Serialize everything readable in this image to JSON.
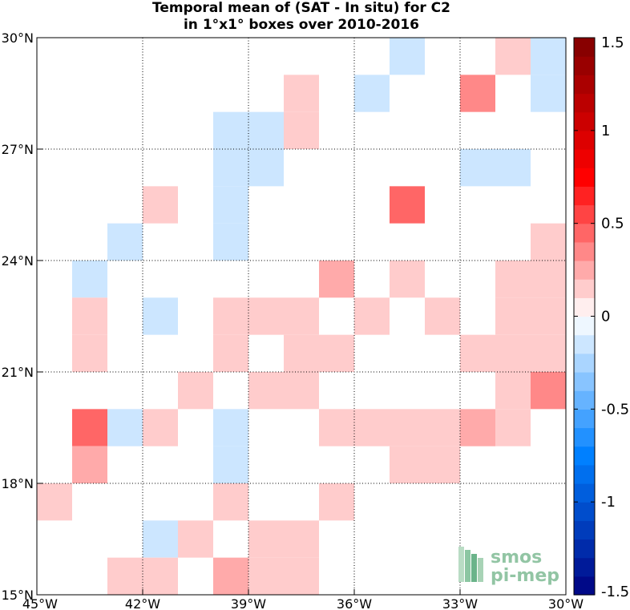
{
  "chart_data": {
    "type": "heatmap",
    "title_lines": [
      "Temporal mean of (SAT - In situ) for C2",
      "in 1°x1° boxes over 2010-2016"
    ],
    "x_ticks": [
      {
        "v": -45,
        "label": "45°W"
      },
      {
        "v": -42,
        "label": "42°W"
      },
      {
        "v": -39,
        "label": "39°W"
      },
      {
        "v": -36,
        "label": "36°W"
      },
      {
        "v": -33,
        "label": "33°W"
      },
      {
        "v": -30,
        "label": "30°W"
      }
    ],
    "y_ticks": [
      {
        "v": 15,
        "label": "15°N"
      },
      {
        "v": 18,
        "label": "18°N"
      },
      {
        "v": 21,
        "label": "21°N"
      },
      {
        "v": 24,
        "label": "24°N"
      },
      {
        "v": 27,
        "label": "27°N"
      },
      {
        "v": 30,
        "label": "30°N"
      }
    ],
    "xlim": [
      -45,
      -30
    ],
    "ylim": [
      15,
      30
    ],
    "grid": "dotted",
    "colorbar": {
      "range": [
        -1.5,
        1.5
      ],
      "ticks": [
        {
          "v": 1.5,
          "label": "1.5"
        },
        {
          "v": 1,
          "label": "1"
        },
        {
          "v": 0.5,
          "label": "0.5"
        },
        {
          "v": 0,
          "label": "0"
        },
        {
          "v": -0.5,
          "label": "-0.5"
        },
        {
          "v": -1,
          "label": "-1"
        },
        {
          "v": -1.5,
          "label": "-1.5"
        }
      ],
      "steps": 30,
      "colormap": "blue-white-red"
    },
    "cells": [
      [
        -35,
        29,
        -0.1
      ],
      [
        -32,
        29,
        0.1
      ],
      [
        -31,
        29,
        -0.1
      ],
      [
        -38,
        28,
        0.1
      ],
      [
        -36,
        28,
        -0.1
      ],
      [
        -33,
        28,
        0.3
      ],
      [
        -31,
        28,
        -0.1
      ],
      [
        -40,
        27,
        -0.2
      ],
      [
        -39,
        27,
        -0.1
      ],
      [
        -38,
        27,
        0.1
      ],
      [
        -40,
        26,
        -0.1
      ],
      [
        -39,
        26,
        -0.1
      ],
      [
        -33,
        26,
        -0.1
      ],
      [
        -32,
        26,
        -0.1
      ],
      [
        -42,
        25,
        0.1
      ],
      [
        -40,
        25,
        -0.2
      ],
      [
        -35,
        25,
        0.4
      ],
      [
        -43,
        24,
        -0.1
      ],
      [
        -40,
        24,
        -0.1
      ],
      [
        -31,
        24,
        0.1
      ],
      [
        -44,
        23,
        -0.1
      ],
      [
        -37,
        23,
        0.2
      ],
      [
        -35,
        23,
        0.1
      ],
      [
        -32,
        23,
        0.1
      ],
      [
        -31,
        23,
        0.1
      ],
      [
        -44,
        22,
        0.1
      ],
      [
        -42,
        22,
        -0.1
      ],
      [
        -40,
        22,
        0.1
      ],
      [
        -39,
        22,
        0.1
      ],
      [
        -38,
        22,
        0.1
      ],
      [
        -36,
        22,
        0.1
      ],
      [
        -34,
        22,
        0.1
      ],
      [
        -32,
        22,
        0.1
      ],
      [
        -31,
        22,
        0.1
      ],
      [
        -44,
        21,
        0.1
      ],
      [
        -40,
        21,
        0.1
      ],
      [
        -38,
        21,
        0.1
      ],
      [
        -37,
        21,
        0.1
      ],
      [
        -33,
        21,
        0.1
      ],
      [
        -32,
        21,
        0.1
      ],
      [
        -31,
        21,
        0.1
      ],
      [
        -41,
        20,
        0.1
      ],
      [
        -39,
        20,
        0.1
      ],
      [
        -38,
        20,
        0.1
      ],
      [
        -32,
        20,
        0.1
      ],
      [
        -31,
        20,
        0.3
      ],
      [
        -44,
        19,
        0.4
      ],
      [
        -43,
        19,
        -0.1
      ],
      [
        -42,
        19,
        0.1
      ],
      [
        -40,
        19,
        -0.1
      ],
      [
        -37,
        19,
        0.1
      ],
      [
        -36,
        19,
        0.1
      ],
      [
        -35,
        19,
        0.1
      ],
      [
        -34,
        19,
        0.1
      ],
      [
        -33,
        19,
        0.2
      ],
      [
        -32,
        19,
        0.1
      ],
      [
        -44,
        18,
        0.2
      ],
      [
        -40,
        18,
        -0.1
      ],
      [
        -35,
        18,
        0.1
      ],
      [
        -34,
        18,
        0.1
      ],
      [
        -45,
        17,
        0.1
      ],
      [
        -40,
        17,
        0.1
      ],
      [
        -37,
        17,
        0.1
      ],
      [
        -42,
        16,
        -0.1
      ],
      [
        -41,
        16,
        0.1
      ],
      [
        -39,
        16,
        0.1
      ],
      [
        -38,
        16,
        0.1
      ],
      [
        -43,
        15,
        0.1
      ],
      [
        -42,
        15,
        0.1
      ],
      [
        -40,
        15,
        0.2
      ],
      [
        -39,
        15,
        0.1
      ],
      [
        -38,
        15,
        0.1
      ]
    ]
  },
  "logo": {
    "line1": "smos",
    "line2": "pi-mep"
  }
}
